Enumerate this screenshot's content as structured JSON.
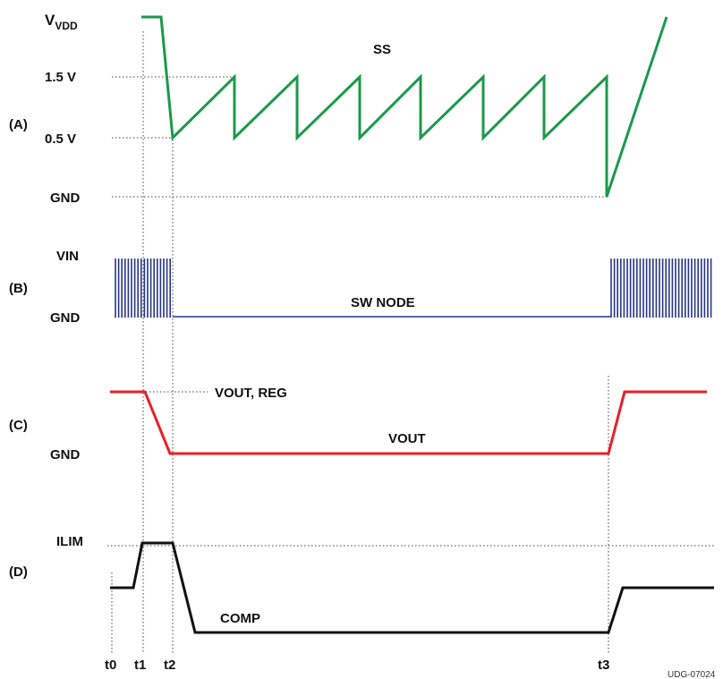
{
  "panels": [
    "(A)",
    "(B)",
    "(C)",
    "(D)"
  ],
  "levels": {
    "a_vdd_main": "V",
    "a_vdd_sub": "VDD",
    "a_1p5": "1.5 V",
    "a_0p5": "0.5 V",
    "a_gnd": "GND",
    "b_vin": "VIN",
    "b_gnd": "GND",
    "c_gnd": "GND",
    "d_ilim": "ILIM"
  },
  "signals": {
    "ss": "SS",
    "sw_node": "SW NODE",
    "vout_reg": "VOUT, REG",
    "vout": "VOUT",
    "comp": "COMP"
  },
  "time_markers": [
    "t0",
    "t1",
    "t2",
    "t3"
  ],
  "figure_id": "UDG-07024",
  "colors": {
    "ss": "#1a9a4a",
    "sw_node": "#27358a",
    "vout": "#e8202a",
    "comp": "#111111"
  }
}
